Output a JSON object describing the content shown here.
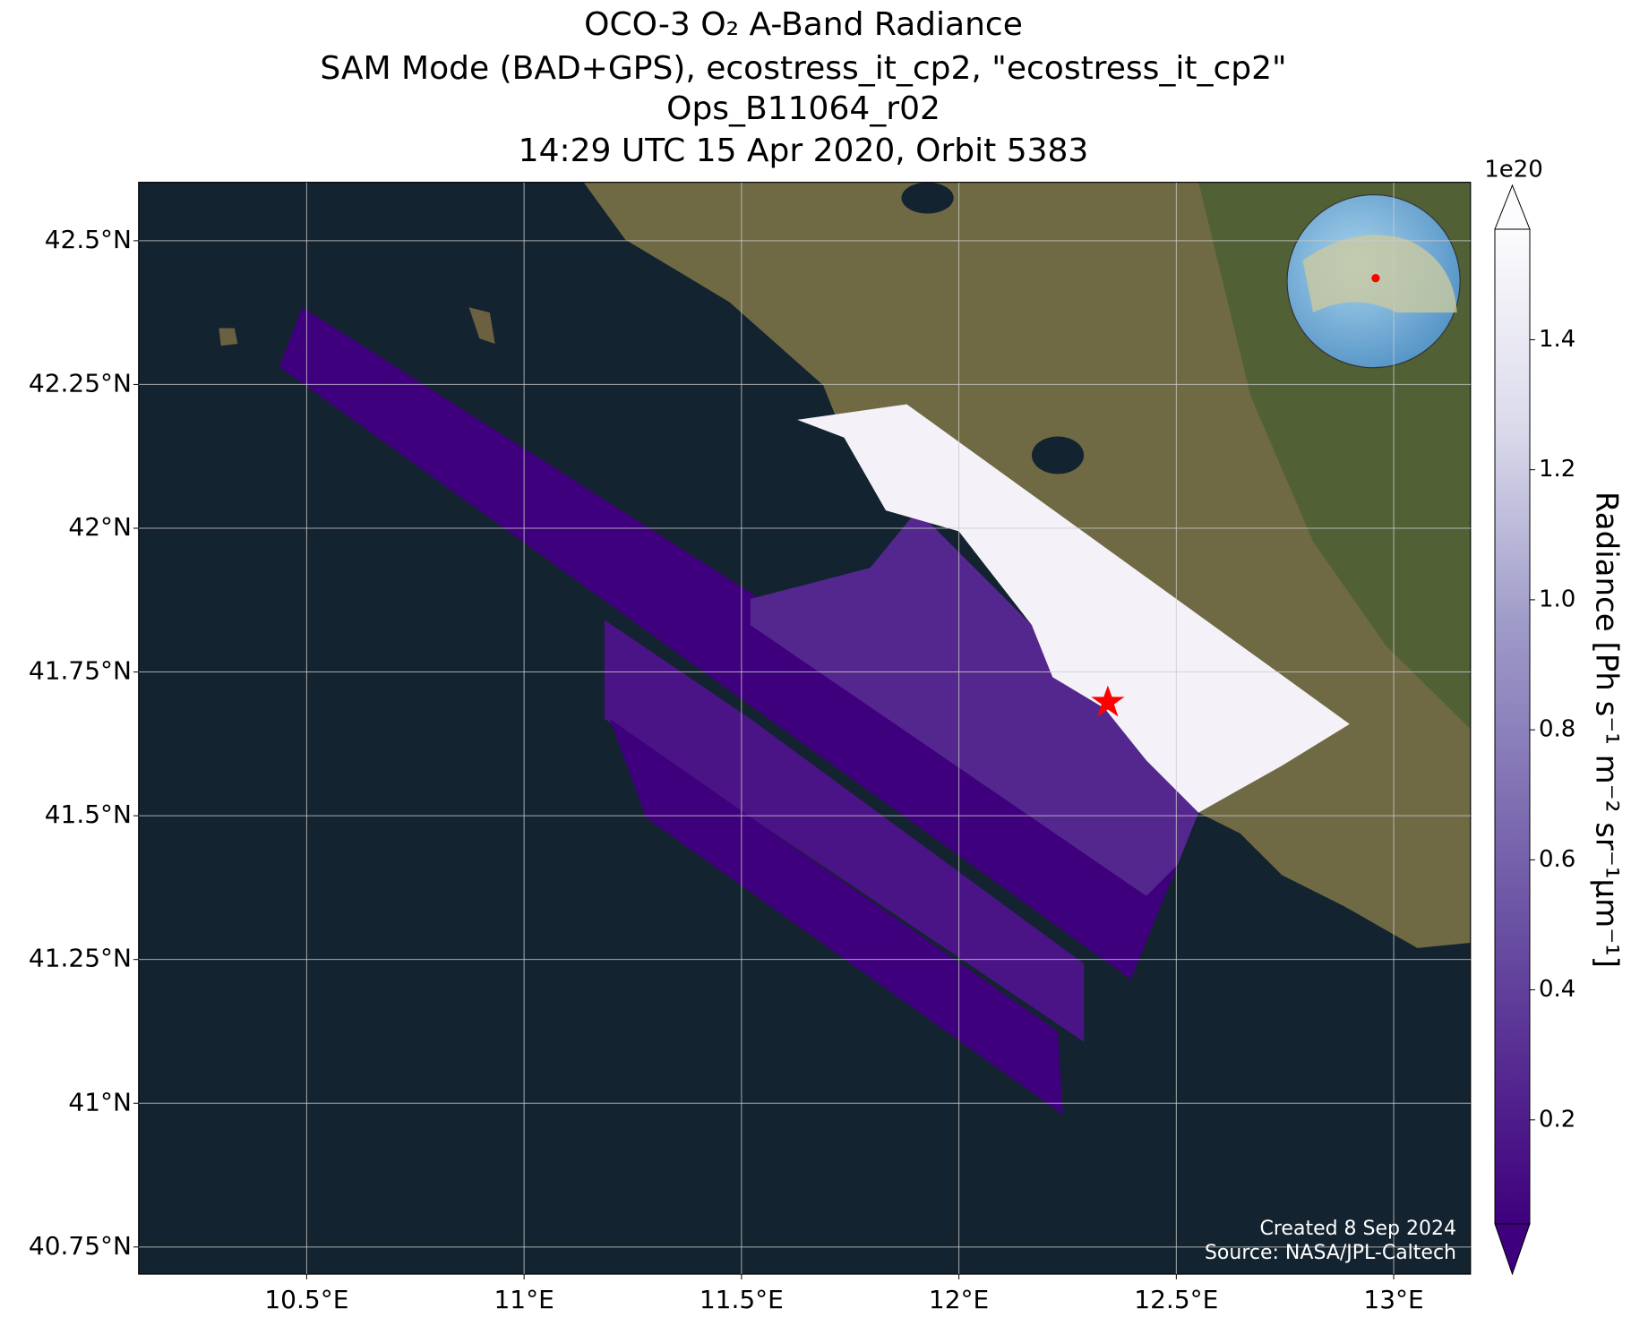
{
  "chart_data": {
    "type": "map",
    "title": [
      "OCO-3 O₂ A-Band Radiance",
      "SAM Mode (BAD+GPS), ecostress_it_cp2, \"ecostress_it_cp2\"",
      "Ops_B11064_r02",
      "14:29 UTC 15 Apr 2020, Orbit 5383"
    ],
    "xlim": [
      10.114,
      13.177
    ],
    "ylim": [
      40.703,
      42.601
    ],
    "xticks": [
      {
        "value": 10.5,
        "label": "10.5°E"
      },
      {
        "value": 11,
        "label": "11°E"
      },
      {
        "value": 11.5,
        "label": "11.5°E"
      },
      {
        "value": 12,
        "label": "12°E"
      },
      {
        "value": 12.5,
        "label": "12.5°E"
      },
      {
        "value": 13,
        "label": "13°E"
      }
    ],
    "yticks": [
      {
        "value": 40.75,
        "label": "40.75°N"
      },
      {
        "value": 41,
        "label": "41°N"
      },
      {
        "value": 41.25,
        "label": "41.25°N"
      },
      {
        "value": 41.5,
        "label": "41.5°N"
      },
      {
        "value": 41.75,
        "label": "41.75°N"
      },
      {
        "value": 42,
        "label": "42°N"
      },
      {
        "value": 42.25,
        "label": "42.25°N"
      },
      {
        "value": 42.5,
        "label": "42.5°N"
      }
    ],
    "grid": true,
    "colorbar": {
      "label": "Radiance [Ph s⁻¹ m⁻² sr⁻¹μm⁻¹]",
      "offset_label": "1e20",
      "clim": [
        0.04,
        1.57
      ],
      "ticks": [
        0.2,
        0.4,
        0.6,
        0.8,
        {
          "value": 1,
          "label": "1.0"
        },
        1.2,
        1.4
      ]
    },
    "annotations": [
      "Created 8 Sep 2024",
      "Source: NASA/JPL-Caltech"
    ]
  }
}
